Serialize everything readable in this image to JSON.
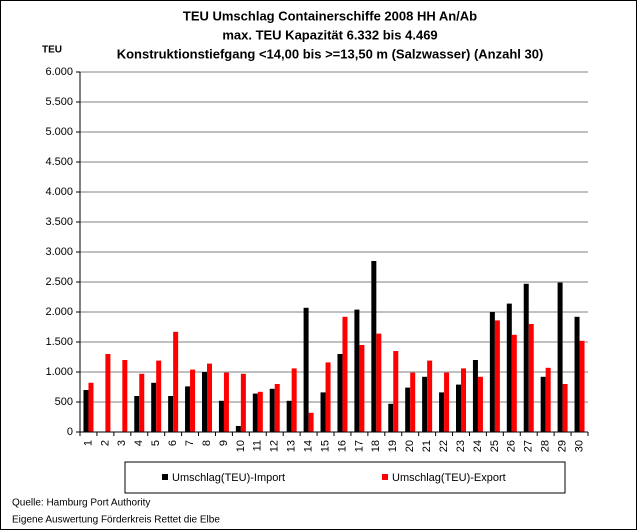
{
  "chart_data": {
    "type": "bar",
    "title": [
      "TEU Umschlag Containerschiffe 2008 HH An/Ab",
      "max. TEU Kapazität  6.332 bis 4.469",
      "Konstruktionstiefgang <14,00 bis >=13,50 m (Salzwasser)  (Anzahl 30)"
    ],
    "y_label": "TEU",
    "categories": [
      "1",
      "2",
      "3",
      "4",
      "5",
      "6",
      "7",
      "8",
      "9",
      "10",
      "11",
      "12",
      "13",
      "14",
      "15",
      "16",
      "17",
      "18",
      "19",
      "20",
      "21",
      "22",
      "23",
      "24",
      "25",
      "26",
      "27",
      "28",
      "29",
      "30"
    ],
    "series": [
      {
        "name": "Umschlag(TEU)-Import",
        "color": "#000000",
        "values": [
          700,
          0,
          0,
          600,
          820,
          600,
          760,
          1000,
          520,
          100,
          640,
          720,
          520,
          2070,
          660,
          1300,
          2040,
          2850,
          470,
          740,
          920,
          660,
          790,
          1200,
          2000,
          2140,
          2470,
          920,
          2490,
          1920
        ]
      },
      {
        "name": "Umschlag(TEU)-Export",
        "color": "#ff0000",
        "values": [
          820,
          1300,
          1200,
          970,
          1190,
          1670,
          1040,
          1140,
          990,
          970,
          670,
          800,
          1060,
          320,
          1160,
          1920,
          1450,
          1640,
          1350,
          990,
          1190,
          990,
          1060,
          920,
          1860,
          1620,
          1800,
          1070,
          800,
          1520
        ]
      }
    ],
    "ylim": [
      0,
      6000
    ],
    "yticks": [
      0,
      {
        "value": 500,
        "label": "500"
      },
      {
        "value": 1000,
        "label": "1.000"
      },
      {
        "value": 1500,
        "label": "1.500"
      },
      {
        "value": 2000,
        "label": "2.000"
      },
      {
        "value": 2500,
        "label": "2.500"
      },
      {
        "value": 3000,
        "label": "3.000"
      },
      {
        "value": 3500,
        "label": "3.500"
      },
      {
        "value": 4000,
        "label": "4.000"
      },
      {
        "value": 4500,
        "label": "4.500"
      },
      {
        "value": 5000,
        "label": "5.000"
      },
      {
        "value": 5500,
        "label": "5.500"
      },
      {
        "value": 6000,
        "label": "6.000"
      }
    ],
    "grid": true,
    "legend": "bottom",
    "footnotes": [
      "Quelle: Hamburg Port Authority",
      "Eigene Auswertung Förderkreis Rettet die Elbe"
    ]
  }
}
